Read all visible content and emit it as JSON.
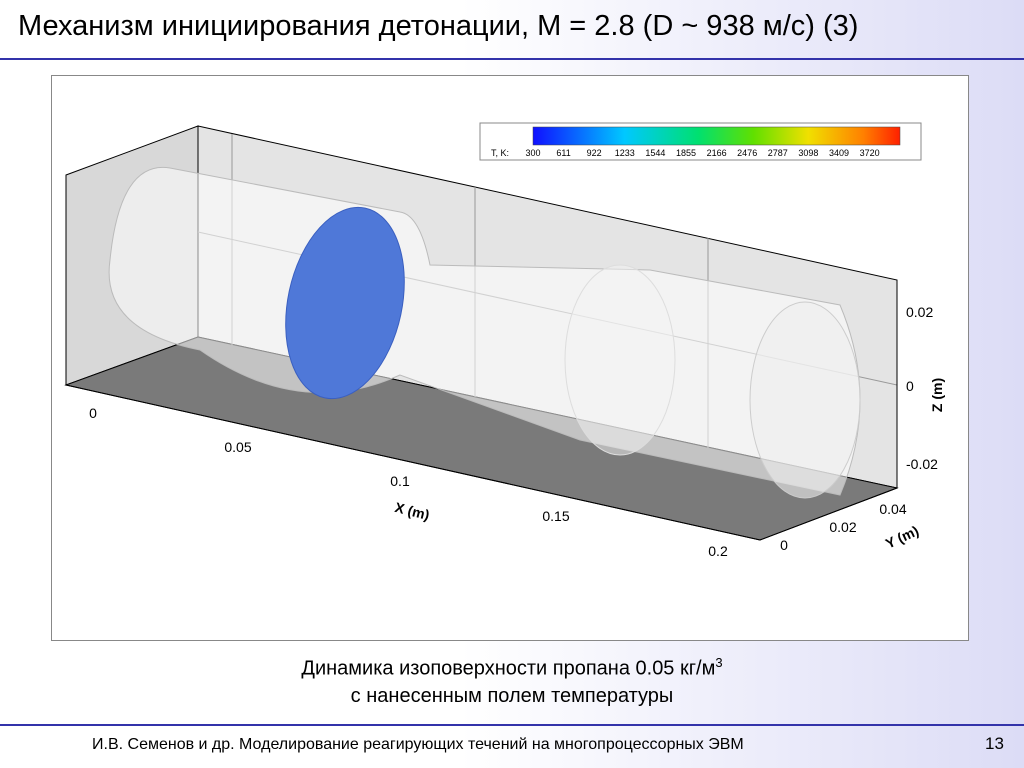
{
  "header": {
    "title": "Механизм инициирования детонации, M = 2.8 (D ~ 938 м/с) (3)"
  },
  "figure": {
    "colorbar": {
      "label": "T, K:",
      "ticks": [
        "300",
        "611",
        "922",
        "1233",
        "1544",
        "1855",
        "2166",
        "2476",
        "2787",
        "3098",
        "3409",
        "3720"
      ]
    },
    "x_axis": {
      "label": "X (m)",
      "ticks": [
        "0",
        "0.05",
        "0.1",
        "0.15",
        "0.2"
      ]
    },
    "y_axis": {
      "label": "Y (m)",
      "ticks": [
        "0",
        "0.02",
        "0.04"
      ]
    },
    "z_axis": {
      "label": "Z (m)",
      "ticks": [
        "0.02",
        "0",
        "-0.02"
      ]
    }
  },
  "caption": {
    "line1": "Динамика изоповерхности пропана 0.05 кг/м",
    "superscript": "3",
    "line2": "с нанесенным полем температуры"
  },
  "footer": {
    "text": "И.В. Семенов и др. Моделирование реагирующих течений на многопроцессорных ЭВМ",
    "page": "13"
  }
}
